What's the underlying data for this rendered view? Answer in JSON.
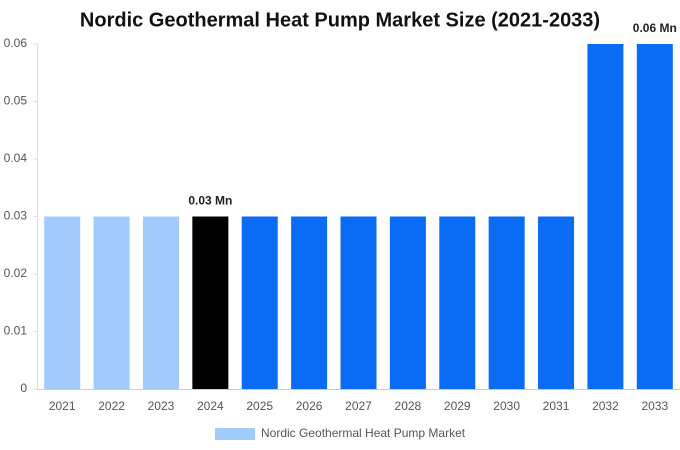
{
  "chart_data": {
    "type": "bar",
    "title": "Nordic Geothermal Heat Pump Market Size (2021-2033)",
    "categories": [
      "2021",
      "2022",
      "2023",
      "2024",
      "2025",
      "2026",
      "2027",
      "2028",
      "2029",
      "2030",
      "2031",
      "2032",
      "2033"
    ],
    "series": [
      {
        "name": "Nordic Geothermal Heat Pump Market",
        "color": "#a0cbfb",
        "values": [
          0.03,
          0.03,
          0.03,
          0.03,
          0.03,
          0.03,
          0.03,
          0.03,
          0.03,
          0.03,
          0.03,
          0.06,
          0.06
        ],
        "value_labels": [
          null,
          null,
          null,
          "0.03 Mn",
          null,
          null,
          null,
          null,
          null,
          null,
          null,
          null,
          "0.06 Mn"
        ],
        "colors": [
          "#a0cbfb",
          "#a0cbfb",
          "#a0cbfb",
          "#000000",
          "#0a6cf5",
          "#0a6cf5",
          "#0a6cf5",
          "#0a6cf5",
          "#0a6cf5",
          "#0a6cf5",
          "#0a6cf5",
          "#0a6cf5",
          "#0a6cf5"
        ]
      }
    ],
    "ylim": [
      0,
      0.06
    ],
    "yticks": [
      0,
      0.01,
      0.02,
      0.03,
      0.04,
      0.05,
      0.06
    ],
    "grid": false
  }
}
